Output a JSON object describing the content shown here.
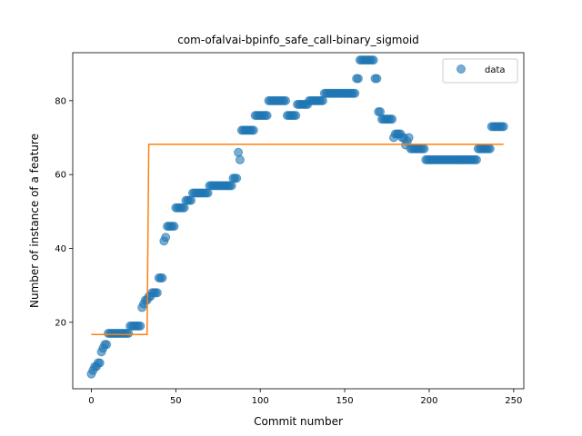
{
  "chart_data": {
    "type": "scatter",
    "title": "com-ofalvai-bpinfo_safe_call-binary_sigmoid",
    "xlabel": "Commit number",
    "ylabel": "Number of instance of a feature",
    "xlim": [
      -11,
      256
    ],
    "ylim": [
      2,
      93
    ],
    "xticks": [
      0,
      50,
      100,
      150,
      200,
      250
    ],
    "yticks": [
      20,
      40,
      60,
      80
    ],
    "legend": {
      "position": "top-right",
      "entries": [
        "data"
      ]
    },
    "colors": {
      "points": "#1f77b4",
      "fit": "#ff7f0e"
    },
    "series": [
      {
        "name": "data",
        "kind": "points",
        "segments": [
          [
            0,
            0,
            6
          ],
          [
            1,
            1,
            7
          ],
          [
            2,
            3,
            8
          ],
          [
            4,
            5,
            9
          ],
          [
            6,
            6,
            12
          ],
          [
            7,
            7,
            13
          ],
          [
            8,
            9,
            14
          ],
          [
            10,
            22,
            17
          ],
          [
            23,
            29,
            19
          ],
          [
            30,
            30,
            24
          ],
          [
            31,
            31,
            25
          ],
          [
            32,
            33,
            26
          ],
          [
            34,
            35,
            27
          ],
          [
            36,
            39,
            28
          ],
          [
            40,
            42,
            32
          ],
          [
            43,
            43,
            42
          ],
          [
            44,
            44,
            43
          ],
          [
            45,
            49,
            46
          ],
          [
            50,
            55,
            51
          ],
          [
            56,
            59,
            53
          ],
          [
            60,
            69,
            55
          ],
          [
            70,
            83,
            57
          ],
          [
            84,
            86,
            59
          ],
          [
            87,
            87,
            66
          ],
          [
            88,
            88,
            64
          ],
          [
            89,
            96,
            72
          ],
          [
            97,
            104,
            76
          ],
          [
            105,
            115,
            80
          ],
          [
            116,
            121,
            76
          ],
          [
            122,
            128,
            79
          ],
          [
            129,
            137,
            80
          ],
          [
            138,
            156,
            82
          ],
          [
            157,
            158,
            86
          ],
          [
            159,
            167,
            91
          ],
          [
            168,
            169,
            86
          ],
          [
            170,
            171,
            77
          ],
          [
            172,
            178,
            75
          ],
          [
            179,
            179,
            70
          ],
          [
            180,
            183,
            71
          ],
          [
            184,
            185,
            70
          ],
          [
            186,
            186,
            68
          ],
          [
            187,
            187,
            69
          ],
          [
            188,
            188,
            70
          ],
          [
            189,
            197,
            67
          ],
          [
            198,
            228,
            64
          ],
          [
            229,
            236,
            67
          ],
          [
            237,
            244,
            73
          ]
        ]
      },
      {
        "name": "fit",
        "kind": "line",
        "points": [
          [
            0,
            16.7
          ],
          [
            33,
            16.7
          ],
          [
            34,
            68.2
          ],
          [
            244,
            68.2
          ]
        ]
      }
    ]
  }
}
